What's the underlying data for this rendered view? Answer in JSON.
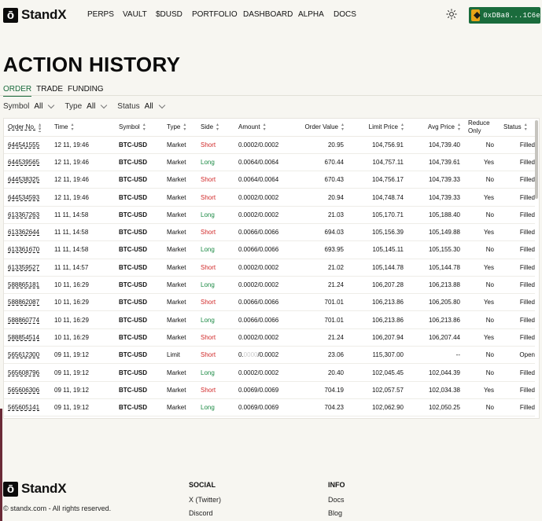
{
  "brand": {
    "name": "StandX",
    "mark": "ō"
  },
  "nav": {
    "items": [
      "PERPS",
      "VAULT",
      "$DUSD",
      "PORTFOLIO",
      "DASHBOARD",
      "ALPHA",
      "DOCS"
    ],
    "wallet": "0xDBa8...1C6e"
  },
  "page": {
    "title": "ACTION HISTORY"
  },
  "tabs": [
    "ORDER",
    "TRADE",
    "FUNDING"
  ],
  "filters": [
    {
      "label": "Symbol",
      "value": "All"
    },
    {
      "label": "Type",
      "value": "All"
    },
    {
      "label": "Status",
      "value": "All"
    }
  ],
  "table": {
    "columns": [
      "Order No.",
      "Time",
      "Symbol",
      "Type",
      "Side",
      "Amount",
      "Order Value",
      "Limit Price",
      "Avg Price",
      "Reduce Only",
      "Status"
    ],
    "rows": [
      {
        "order": "644541555",
        "time": "12 11, 19:46",
        "symbol": "BTC-USD",
        "type": "Market",
        "side": "Short",
        "amount": "0.0002/0.0002",
        "value": "20.95",
        "limit": "104,756.91",
        "avg": "104,739.40",
        "reduce": "No",
        "status": "Filled"
      },
      {
        "order": "644539565",
        "time": "12 11, 19:46",
        "symbol": "BTC-USD",
        "type": "Market",
        "side": "Long",
        "amount": "0.0064/0.0064",
        "value": "670.44",
        "limit": "104,757.11",
        "avg": "104,739.61",
        "reduce": "Yes",
        "status": "Filled"
      },
      {
        "order": "644538325",
        "time": "12 11, 19:46",
        "symbol": "BTC-USD",
        "type": "Market",
        "side": "Short",
        "amount": "0.0064/0.0064",
        "value": "670.43",
        "limit": "104,756.17",
        "avg": "104,739.33",
        "reduce": "No",
        "status": "Filled"
      },
      {
        "order": "644534593",
        "time": "12 11, 19:46",
        "symbol": "BTC-USD",
        "type": "Market",
        "side": "Short",
        "amount": "0.0002/0.0002",
        "value": "20.94",
        "limit": "104,748.74",
        "avg": "104,739.33",
        "reduce": "Yes",
        "status": "Filled"
      },
      {
        "order": "613367263",
        "time": "11 11, 14:58",
        "symbol": "BTC-USD",
        "type": "Market",
        "side": "Long",
        "amount": "0.0002/0.0002",
        "value": "21.03",
        "limit": "105,170.71",
        "avg": "105,188.40",
        "reduce": "No",
        "status": "Filled"
      },
      {
        "order": "613362644",
        "time": "11 11, 14:58",
        "symbol": "BTC-USD",
        "type": "Market",
        "side": "Short",
        "amount": "0.0066/0.0066",
        "value": "694.03",
        "limit": "105,156.39",
        "avg": "105,149.88",
        "reduce": "Yes",
        "status": "Filled"
      },
      {
        "order": "613361670",
        "time": "11 11, 14:58",
        "symbol": "BTC-USD",
        "type": "Market",
        "side": "Long",
        "amount": "0.0066/0.0066",
        "value": "693.95",
        "limit": "105,145.11",
        "avg": "105,155.30",
        "reduce": "No",
        "status": "Filled"
      },
      {
        "order": "613359527",
        "time": "11 11, 14:57",
        "symbol": "BTC-USD",
        "type": "Market",
        "side": "Short",
        "amount": "0.0002/0.0002",
        "value": "21.02",
        "limit": "105,144.78",
        "avg": "105,144.78",
        "reduce": "Yes",
        "status": "Filled"
      },
      {
        "order": "588865181",
        "time": "10 11, 16:29",
        "symbol": "BTC-USD",
        "type": "Market",
        "side": "Long",
        "amount": "0.0002/0.0002",
        "value": "21.24",
        "limit": "106,207.28",
        "avg": "106,213.88",
        "reduce": "No",
        "status": "Filled"
      },
      {
        "order": "588862087",
        "time": "10 11, 16:29",
        "symbol": "BTC-USD",
        "type": "Market",
        "side": "Short",
        "amount": "0.0066/0.0066",
        "value": "701.01",
        "limit": "106,213.86",
        "avg": "106,205.80",
        "reduce": "Yes",
        "status": "Filled"
      },
      {
        "order": "588860774",
        "time": "10 11, 16:29",
        "symbol": "BTC-USD",
        "type": "Market",
        "side": "Long",
        "amount": "0.0066/0.0066",
        "value": "701.01",
        "limit": "106,213.86",
        "avg": "106,213.86",
        "reduce": "No",
        "status": "Filled"
      },
      {
        "order": "588854514",
        "time": "10 11, 16:29",
        "symbol": "BTC-USD",
        "type": "Market",
        "side": "Short",
        "amount": "0.0002/0.0002",
        "value": "21.24",
        "limit": "106,207.94",
        "avg": "106,207.44",
        "reduce": "Yes",
        "status": "Filled"
      },
      {
        "order": "565612300",
        "time": "09 11, 19:12",
        "symbol": "BTC-USD",
        "type": "Limit",
        "side": "Short",
        "amount_a": "0.",
        "amount_b": "0000",
        "amount_c": "/0.0002",
        "value": "23.06",
        "limit": "115,307.00",
        "avg": "--",
        "reduce": "No",
        "status": "Open"
      },
      {
        "order": "565608796",
        "time": "09 11, 19:12",
        "symbol": "BTC-USD",
        "type": "Market",
        "side": "Long",
        "amount": "0.0002/0.0002",
        "value": "20.40",
        "limit": "102,045.45",
        "avg": "102,044.39",
        "reduce": "No",
        "status": "Filled"
      },
      {
        "order": "565606306",
        "time": "09 11, 19:12",
        "symbol": "BTC-USD",
        "type": "Market",
        "side": "Short",
        "amount": "0.0069/0.0069",
        "value": "704.19",
        "limit": "102,057.57",
        "avg": "102,034.38",
        "reduce": "Yes",
        "status": "Filled"
      },
      {
        "order": "565605141",
        "time": "09 11, 19:12",
        "symbol": "BTC-USD",
        "type": "Market",
        "side": "Long",
        "amount": "0.0069/0.0069",
        "value": "704.23",
        "limit": "102,062.90",
        "avg": "102,050.25",
        "reduce": "No",
        "status": "Filled"
      }
    ]
  },
  "footer": {
    "copyright": "© standx.com - All rights reserved.",
    "social": {
      "heading": "SOCIAL",
      "links": [
        "X (Twitter)",
        "Discord"
      ]
    },
    "info": {
      "heading": "INFO",
      "links": [
        "Docs",
        "Blog"
      ]
    }
  },
  "colors": {
    "accent": "#1a6b3c",
    "long": "#1c8a44",
    "short": "#d12a2a"
  },
  "icons": [
    "theme-sun-icon",
    "wallet-avatar-icon",
    "sort-icon",
    "chevron-down-icon"
  ]
}
